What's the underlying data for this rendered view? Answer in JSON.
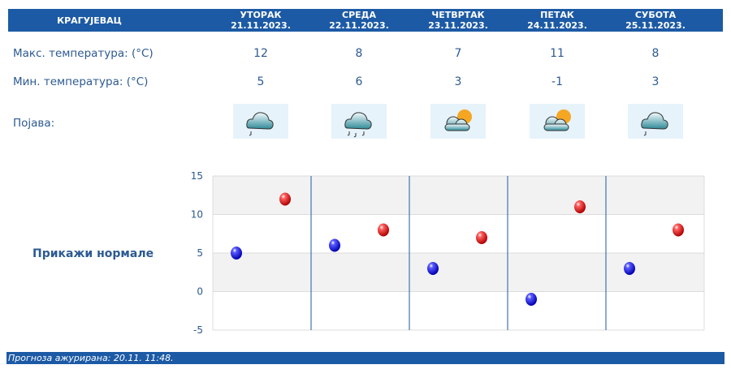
{
  "header": {
    "city": "КРАГУЈЕВАЦ",
    "days": [
      {
        "day": "УТОРАК",
        "date": "21.11.2023."
      },
      {
        "day": "СРЕДА",
        "date": "22.11.2023."
      },
      {
        "day": "ЧЕТВРТАК",
        "date": "23.11.2023."
      },
      {
        "day": "ПЕТАК",
        "date": "24.11.2023."
      },
      {
        "day": "СУБОТА",
        "date": "25.11.2023."
      }
    ]
  },
  "rows": {
    "max_label": "Макс. температура: (°C)",
    "min_label": "Мин. температура: (°C)",
    "phenomenon_label": "Појава:"
  },
  "max": [
    "12",
    "8",
    "7",
    "11",
    "8"
  ],
  "min": [
    "5",
    "6",
    "3",
    "-1",
    "3"
  ],
  "icons": [
    "cloud-light-rain-icon",
    "cloud-rain-icon",
    "partly-cloudy-sun-icon",
    "partly-cloudy-sun-icon",
    "cloud-light-rain-icon"
  ],
  "show_normals": "Прикажи нормале",
  "footer": "Прогноза ажурирана:  20.11. 11:48.",
  "chart_data": {
    "type": "scatter",
    "ylim": [
      -5,
      15
    ],
    "yticks": [
      "15",
      "10",
      "5",
      "0",
      "-5"
    ],
    "categories": [
      "21.11.2023.",
      "22.11.2023.",
      "23.11.2023.",
      "24.11.2023.",
      "25.11.2023."
    ],
    "series": [
      {
        "values": [
          5,
          6,
          3,
          -1,
          3
        ],
        "color": "#0000cc"
      },
      {
        "values": [
          12,
          8,
          7,
          11,
          8
        ],
        "color": "#cc0000"
      }
    ],
    "grid": true
  }
}
